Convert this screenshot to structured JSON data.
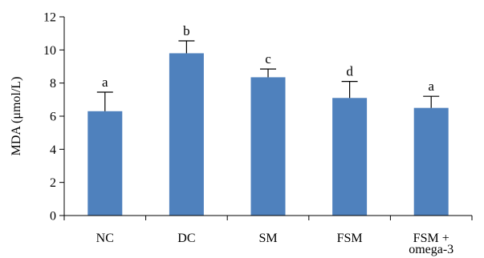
{
  "chart_data": {
    "type": "bar",
    "title": "",
    "xlabel": "",
    "ylabel": "MDA (μmol/L)",
    "ylim": [
      0,
      12
    ],
    "yticks": [
      0,
      2,
      4,
      6,
      8,
      10,
      12
    ],
    "grid": false,
    "categories": [
      [
        "NC"
      ],
      [
        "DC"
      ],
      [
        "SM"
      ],
      [
        "FSM"
      ],
      [
        "FSM +",
        "omega-3"
      ]
    ],
    "values": [
      6.3,
      9.8,
      8.35,
      7.1,
      6.5
    ],
    "errors": [
      1.15,
      0.75,
      0.5,
      1.0,
      0.7
    ],
    "significance": [
      "a",
      "b",
      "c",
      "d",
      "a"
    ],
    "colors": {
      "bar": "#4f81bd",
      "axis": "#000000"
    }
  }
}
